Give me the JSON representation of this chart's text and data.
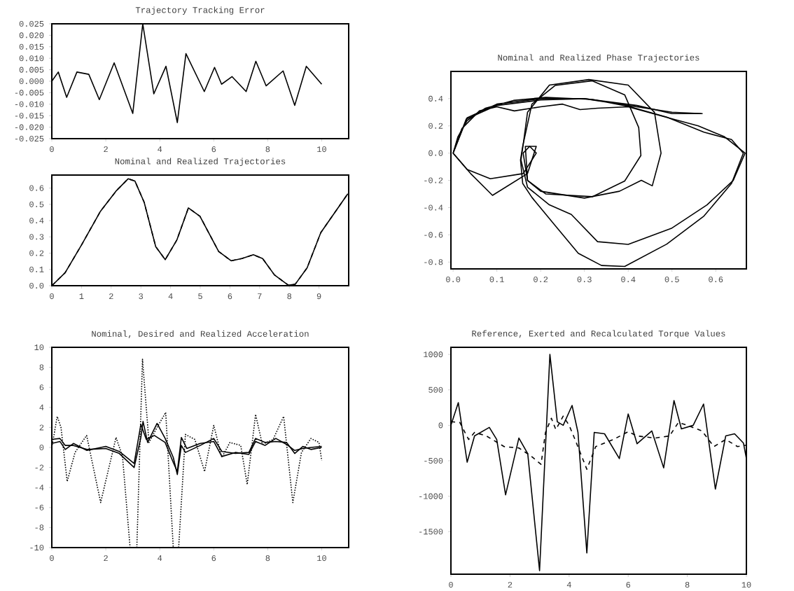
{
  "chart_data": [
    {
      "type": "line",
      "title": "Trajectory Tracking Error",
      "xlim": [
        0,
        11
      ],
      "ylim": [
        -0.025,
        0.025
      ],
      "xticks": [
        0,
        2,
        4,
        6,
        8,
        10
      ],
      "yticks": [
        {
          "value": -0.025,
          "label": "-0.025"
        },
        {
          "value": -0.02,
          "label": "-0.020"
        },
        {
          "value": -0.015,
          "label": "-0.015"
        },
        {
          "value": -0.01,
          "label": "-0.010"
        },
        {
          "value": -0.005,
          "label": "-0.005"
        },
        {
          "value": 0,
          "label": "0.000"
        },
        {
          "value": 0.005,
          "label": "0.005"
        },
        {
          "value": 0.01,
          "label": "0.010"
        },
        {
          "value": 0.015,
          "label": "0.015"
        },
        {
          "value": 0.02,
          "label": "0.020"
        },
        {
          "value": 0.025,
          "label": "0.025"
        }
      ],
      "series": [
        {
          "color": "#000000",
          "line_style": "solid",
          "x": [
            0,
            0.24,
            0.55,
            0.93,
            1.37,
            1.76,
            2.31,
            3.0,
            3.37,
            3.78,
            4.23,
            4.65,
            4.97,
            5.65,
            6.03,
            6.29,
            6.68,
            7.2,
            7.56,
            7.94,
            8.57,
            9.0,
            9.43,
            10
          ],
          "values": [
            0,
            0.004,
            -0.007,
            0.004,
            0.003,
            -0.008,
            0.008,
            -0.014,
            0.025,
            -0.0055,
            0.0065,
            -0.018,
            0.012,
            -0.0045,
            0.006,
            -0.0013,
            0.002,
            -0.0045,
            0.0087,
            -0.002,
            0.0045,
            -0.0105,
            0.0065,
            -0.0013
          ]
        }
      ]
    },
    {
      "type": "line",
      "title": "Nominal and Realized Trajectories",
      "xlim": [
        0,
        10
      ],
      "ylim": [
        0,
        0.68
      ],
      "xticks": [
        0,
        1,
        2,
        3,
        4,
        5,
        6,
        7,
        8,
        9
      ],
      "yticks": [
        {
          "value": 0,
          "label": "0.0"
        },
        {
          "value": 0.1,
          "label": "0.1"
        },
        {
          "value": 0.2,
          "label": "0.2"
        },
        {
          "value": 0.3,
          "label": "0.3"
        },
        {
          "value": 0.4,
          "label": "0.4"
        },
        {
          "value": 0.5,
          "label": "0.5"
        },
        {
          "value": 0.6,
          "label": "0.6"
        }
      ],
      "x": [
        0,
        0.45,
        1.0,
        1.63,
        2.18,
        2.57,
        2.8,
        3.11,
        3.5,
        3.82,
        4.21,
        4.6,
        4.99,
        5.62,
        6.04,
        6.4,
        6.79,
        7.1,
        7.5,
        7.97,
        8.2,
        8.6,
        9.06,
        9.97
      ],
      "series": [
        {
          "color": "#000000",
          "line_style": "solid",
          "values": [
            0,
            0.08,
            0.25,
            0.455,
            0.585,
            0.657,
            0.643,
            0.513,
            0.24,
            0.16,
            0.28,
            0.478,
            0.427,
            0.21,
            0.153,
            0.167,
            0.19,
            0.167,
            0.066,
            0.003,
            0.009,
            0.11,
            0.326,
            0.565
          ]
        },
        {
          "color": "#000000",
          "line_style": "dashed",
          "values": [
            0,
            0.08,
            0.25,
            0.455,
            0.585,
            0.657,
            0.643,
            0.513,
            0.24,
            0.16,
            0.28,
            0.478,
            0.427,
            0.21,
            0.153,
            0.167,
            0.19,
            0.167,
            0.066,
            0.003,
            0.009,
            0.11,
            0.326,
            0.565
          ]
        }
      ]
    },
    {
      "type": "line",
      "title": "Nominal and Realized Phase Trajectories",
      "xlim": [
        -0.005,
        0.67
      ],
      "ylim": [
        -0.85,
        0.6
      ],
      "xticks": [
        {
          "value": 0,
          "label": "0.0"
        },
        {
          "value": 0.1,
          "label": "0.1"
        },
        {
          "value": 0.2,
          "label": "0.2"
        },
        {
          "value": 0.3,
          "label": "0.3"
        },
        {
          "value": 0.4,
          "label": "0.4"
        },
        {
          "value": 0.5,
          "label": "0.5"
        },
        {
          "value": 0.6,
          "label": "0.6"
        }
      ],
      "yticks": [
        {
          "value": -0.8,
          "label": "-0.8"
        },
        {
          "value": -0.6,
          "label": "-0.6"
        },
        {
          "value": -0.4,
          "label": "-0.4"
        },
        {
          "value": -0.2,
          "label": "-0.2"
        },
        {
          "value": 0,
          "label": "0.0"
        },
        {
          "value": 0.2,
          "label": "0.2"
        },
        {
          "value": 0.4,
          "label": "0.4"
        }
      ],
      "series": [
        {
          "color": "#000000",
          "line_style": "solid",
          "x": [
            0,
            0.011,
            0.032,
            0.074,
            0.138,
            0.212,
            0.318,
            0.403,
            0.488,
            0.573,
            0.636,
            0.663,
            0.636,
            0.573,
            0.488,
            0.392,
            0.339,
            0.286,
            0.233,
            0.18,
            0.159,
            0.154,
            0.159,
            0.18,
            0.233,
            0.318,
            0.392,
            0.424,
            0.429,
            0.392,
            0.318,
            0.212,
            0.17,
            0.16,
            0.175,
            0.19,
            0.16,
            0.085,
            0.032,
            0,
            0.032,
            0.1,
            0.2,
            0.3,
            0.42,
            0.5,
            0.567
          ],
          "values": [
            0,
            0.12,
            0.24,
            0.33,
            0.387,
            0.41,
            0.394,
            0.342,
            0.264,
            0.154,
            0.1,
            0,
            -0.223,
            -0.462,
            -0.668,
            -0.832,
            -0.825,
            -0.736,
            -0.531,
            -0.325,
            -0.223,
            -0.05,
            0.05,
            0.36,
            0.497,
            0.531,
            0.428,
            0.188,
            -0.017,
            -0.205,
            -0.32,
            -0.3,
            -0.2,
            0,
            0.05,
            0,
            -0.15,
            -0.188,
            -0.12,
            0,
            0.26,
            0.36,
            0.4,
            0.4,
            0.34,
            0.3,
            0.29
          ]
        },
        {
          "color": "#000000",
          "line_style": "solid",
          "x": [
            0,
            0.02,
            0.06,
            0.1,
            0.14,
            0.2,
            0.25,
            0.29,
            0.33,
            0.4,
            0.48,
            0.56,
            0.62,
            0.667,
            0.64,
            0.58,
            0.5,
            0.4,
            0.33,
            0.27,
            0.22,
            0.17,
            0.155,
            0.16,
            0.17,
            0.22,
            0.31,
            0.4,
            0.46,
            0.475,
            0.455,
            0.43,
            0.38,
            0.3,
            0.2,
            0.17,
            0.165,
            0.19,
            0.17,
            0.09,
            0.04,
            0,
            0.03,
            0.1,
            0.2,
            0.3,
            0.42,
            0.5,
            0.57
          ],
          "values": [
            0,
            0.18,
            0.31,
            0.34,
            0.31,
            0.34,
            0.36,
            0.32,
            0.33,
            0.34,
            0.27,
            0.2,
            0.12,
            0,
            -0.2,
            -0.38,
            -0.55,
            -0.67,
            -0.65,
            -0.45,
            -0.38,
            -0.25,
            -0.05,
            0.06,
            0.3,
            0.5,
            0.54,
            0.5,
            0.3,
            0,
            -0.24,
            -0.2,
            -0.28,
            -0.33,
            -0.28,
            -0.2,
            0.05,
            0.05,
            -0.15,
            -0.31,
            -0.15,
            0,
            0.25,
            0.35,
            0.39,
            0.4,
            0.35,
            0.29,
            0.29
          ]
        }
      ]
    },
    {
      "type": "line",
      "title": "Nominal, Desired and Realized Acceleration",
      "xlim": [
        0,
        11
      ],
      "ylim": [
        -10,
        10
      ],
      "xticks": [
        0,
        2,
        4,
        6,
        8,
        10
      ],
      "yticks": [
        -10,
        -8,
        -6,
        -4,
        -2,
        0,
        2,
        4,
        6,
        8,
        10
      ],
      "series": [
        {
          "color": "#000000",
          "line_style": "dotted",
          "x": [
            0,
            0.2,
            0.34,
            0.57,
            0.86,
            1.29,
            1.81,
            2.38,
            2.62,
            2.9,
            3.15,
            3.36,
            3.6,
            3.9,
            4.22,
            4.5,
            4.7,
            4.95,
            5.3,
            5.66,
            6.0,
            6.3,
            6.6,
            7.0,
            7.24,
            7.55,
            7.8,
            8.2,
            8.59,
            8.93,
            9.25,
            9.6,
            9.9,
            10
          ],
          "values": [
            0,
            3.1,
            2.0,
            -3.4,
            -0.5,
            1.2,
            -5.5,
            1.0,
            -0.9,
            -10,
            -10,
            8.8,
            0.5,
            2,
            3.5,
            -10,
            -10,
            1.3,
            0.8,
            -2.4,
            2.2,
            -1.0,
            0.5,
            0.2,
            -3.7,
            3.3,
            0.3,
            0.8,
            3.1,
            -5.5,
            -0.5,
            0.9,
            0.5,
            -1.3
          ]
        },
        {
          "color": "#000000",
          "line_style": "solid",
          "x": [
            0,
            0.3,
            0.5,
            0.8,
            1.3,
            2,
            2.5,
            3.05,
            3.3,
            3.38,
            3.55,
            3.9,
            4.2,
            4.5,
            4.65,
            4.8,
            4.95,
            5.5,
            6,
            6.3,
            6.8,
            7.3,
            7.55,
            7.9,
            8.3,
            8.7,
            9.0,
            9.3,
            9.6,
            10
          ],
          "values": [
            0.8,
            0.9,
            0.2,
            0.2,
            -0.2,
            -0.1,
            -0.6,
            -2.0,
            1.0,
            2.6,
            0.5,
            2.4,
            0.9,
            -1.0,
            -2.7,
            0.2,
            -0.5,
            0.2,
            0.9,
            -0.4,
            -0.6,
            -0.5,
            0.9,
            0.5,
            0.6,
            0.5,
            -0.6,
            0.1,
            -0.2,
            0
          ]
        },
        {
          "color": "#000000",
          "line_style": "solid",
          "x": [
            0,
            0.3,
            0.5,
            0.8,
            1.3,
            2,
            2.5,
            3.05,
            3.3,
            3.5,
            3.8,
            4.2,
            4.5,
            4.65,
            4.8,
            5.0,
            5.5,
            6,
            6.3,
            6.8,
            7.3,
            7.55,
            7.9,
            8.3,
            8.7,
            9.0,
            9.3,
            9.6,
            10
          ],
          "values": [
            0.4,
            0.6,
            -0.2,
            0.4,
            -0.3,
            0.1,
            -0.4,
            -1.6,
            2.3,
            0.8,
            1.2,
            0.5,
            -1.5,
            -2.4,
            1.0,
            -0.1,
            0.4,
            0.6,
            -0.9,
            -0.5,
            -0.7,
            0.6,
            0.2,
            0.9,
            0.3,
            -0.3,
            -0.1,
            0.0,
            0.1
          ]
        }
      ]
    },
    {
      "type": "line",
      "title": "Reference, Exerted and Recalculated Torque Values",
      "xlim": [
        0,
        10
      ],
      "ylim": [
        -2100,
        1100
      ],
      "xticks": [
        0,
        2,
        4,
        6,
        8,
        10
      ],
      "yticks": [
        -1500,
        -1000,
        -500,
        0,
        500,
        1000
      ],
      "series": [
        {
          "color": "#000000",
          "line_style": "solid",
          "x": [
            0,
            0.25,
            0.55,
            0.8,
            1.3,
            1.55,
            1.85,
            2.3,
            2.6,
            3.0,
            3.35,
            3.6,
            3.8,
            4.1,
            4.3,
            4.6,
            4.85,
            5.2,
            5.7,
            6.0,
            6.3,
            6.8,
            7.2,
            7.55,
            7.8,
            8.2,
            8.55,
            8.95,
            9.3,
            9.6,
            9.9,
            10
          ],
          "values": [
            0,
            320,
            -520,
            -150,
            -30,
            -200,
            -980,
            -180,
            -400,
            -2050,
            1000,
            50,
            0,
            280,
            -100,
            -1800,
            -100,
            -120,
            -470,
            160,
            -260,
            -80,
            -600,
            350,
            -50,
            0,
            300,
            -900,
            -150,
            -120,
            -250,
            -470
          ]
        },
        {
          "color": "#000000",
          "line_style": "dashed",
          "x": [
            0,
            0.3,
            0.6,
            0.8,
            1.2,
            1.8,
            2.3,
            2.7,
            3.05,
            3.2,
            3.4,
            3.55,
            3.8,
            4.0,
            4.2,
            4.6,
            4.9,
            5.5,
            6.0,
            6.3,
            6.9,
            7.4,
            7.7,
            8.0,
            8.5,
            8.9,
            9.3,
            9.7,
            10
          ],
          "values": [
            50,
            40,
            -200,
            -100,
            -150,
            -300,
            -320,
            -430,
            -550,
            -100,
            100,
            -60,
            130,
            0,
            -200,
            -620,
            -300,
            -200,
            -90,
            -150,
            -180,
            -150,
            40,
            0,
            -80,
            -300,
            -200,
            -300,
            -280
          ]
        }
      ]
    }
  ]
}
